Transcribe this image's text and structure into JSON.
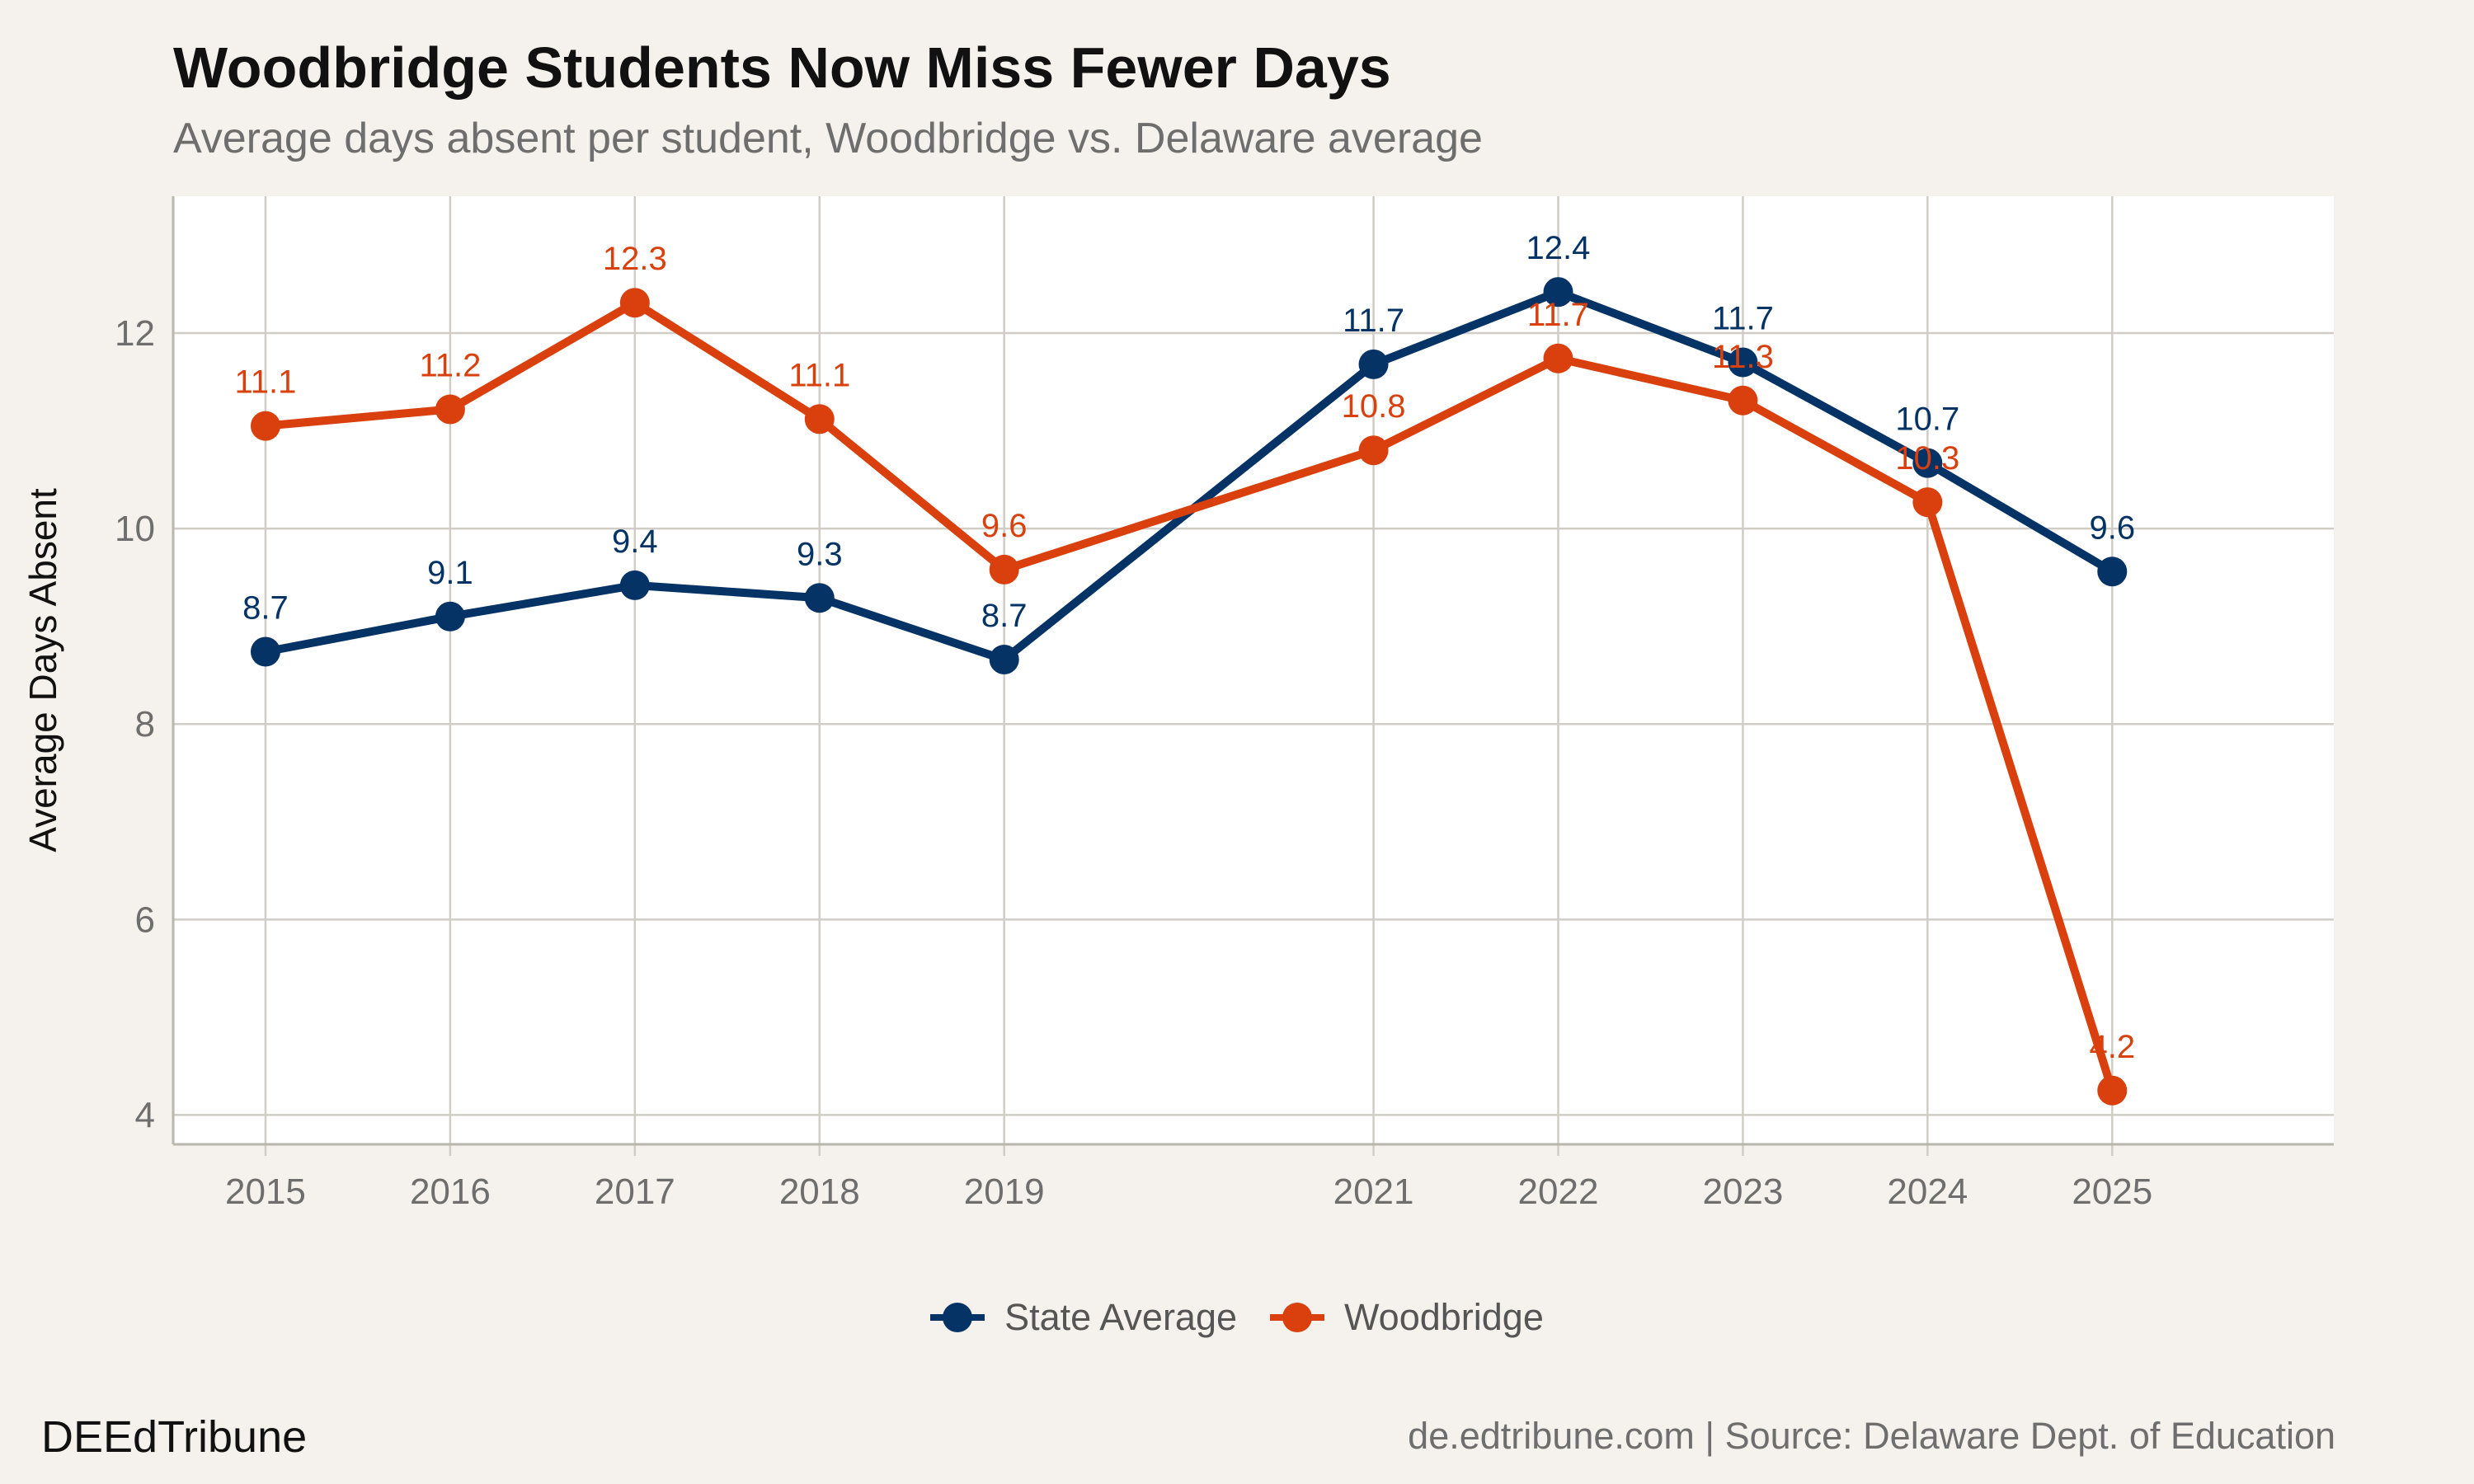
{
  "header": {
    "title": "Woodbridge Students Now Miss Fewer Days",
    "subtitle": "Average days absent per student, Woodbridge vs. Delaware average"
  },
  "footer": {
    "brand": "DEEdTribune",
    "source": "de.edtribune.com | Source: Delaware Dept. of Education"
  },
  "colors": {
    "state": "#063366",
    "woodbridge": "#d9400e",
    "grid": "#d0cdc6",
    "panel": "#ffffff"
  },
  "chart_data": {
    "type": "line",
    "title": "Woodbridge Students Now Miss Fewer Days",
    "subtitle": "Average days absent per student, Woodbridge vs. Delaware average",
    "xlabel": "",
    "ylabel": "Average Days Absent",
    "x": [
      2015,
      2016,
      2017,
      2018,
      2019,
      2021,
      2022,
      2023,
      2024,
      2025
    ],
    "x_tick_labels": [
      "2015",
      "2016",
      "2017",
      "2018",
      "2019",
      "2021",
      "2022",
      "2023",
      "2024",
      "2025"
    ],
    "xlim": [
      2014.5,
      2026.2
    ],
    "ylim": [
      3.7,
      13.4
    ],
    "y_ticks": [
      4,
      6,
      8,
      10,
      12
    ],
    "y_tick_labels": [
      "4",
      "6",
      "8",
      "10",
      "12"
    ],
    "grid": true,
    "legend_position": "bottom",
    "series": [
      {
        "name": "State Average",
        "color": "#063366",
        "values": [
          8.74,
          9.1,
          9.42,
          9.29,
          8.66,
          11.68,
          12.42,
          11.7,
          10.67,
          9.56
        ],
        "labels": [
          "8.7",
          "9.1",
          "9.4",
          "9.3",
          "8.7",
          "11.7",
          "12.4",
          "11.7",
          "10.7",
          "9.6"
        ]
      },
      {
        "name": "Woodbridge",
        "color": "#d9400e",
        "values": [
          11.05,
          11.22,
          12.31,
          11.12,
          9.58,
          10.8,
          11.74,
          11.31,
          10.27,
          4.25
        ],
        "labels": [
          "11.1",
          "11.2",
          "12.3",
          "11.1",
          "9.6",
          "10.8",
          "11.7",
          "11.3",
          "10.3",
          "4.2"
        ]
      }
    ]
  }
}
